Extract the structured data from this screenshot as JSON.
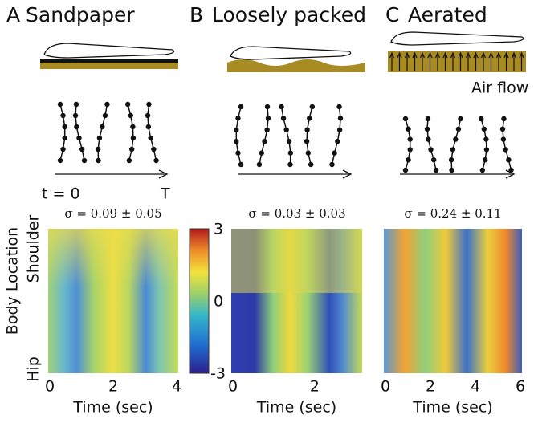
{
  "panels": [
    {
      "letter": "A",
      "title": "Sandpaper",
      "sigma": "σ = 0.09 ± 0.05",
      "x_ticks": [
        "0",
        "2",
        "4"
      ],
      "x_label": "Time (sec)"
    },
    {
      "letter": "B",
      "title": "Loosely packed",
      "sigma": "σ = 0.03 ± 0.03",
      "x_ticks": [
        "0",
        "2"
      ],
      "x_label": "Time (sec)"
    },
    {
      "letter": "C",
      "title": "Aerated",
      "sigma": "σ = 0.24 ± 0.11",
      "x_ticks": [
        "0",
        "2",
        "4",
        "6"
      ],
      "x_label": "Time (sec)"
    }
  ],
  "air_flow": "Air flow",
  "time_start": "t = 0",
  "time_end": "T",
  "y_label": "Body Location",
  "y_top": "Shoulder",
  "y_bottom": "Hip",
  "colorbar_ticks": [
    "3",
    "0",
    "-3"
  ]
}
